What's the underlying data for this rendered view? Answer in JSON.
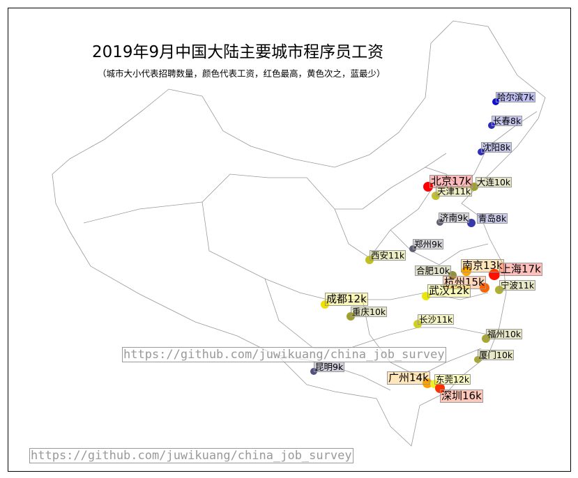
{
  "title": "2019年9月中国大陆主要城市程序员工资",
  "subtitle": "（城市大小代表招聘数量，颜色代表工资，红色最高，黄色次之，蓝最少）",
  "watermark": "https://github.com/juwikuang/china_job_survey",
  "chart_data": {
    "type": "scatter-map",
    "cities": [
      {
        "name": "哈尔滨",
        "salary_k": 7,
        "label": "哈尔滨7k",
        "color": "#1010d0"
      },
      {
        "name": "长春",
        "salary_k": 8,
        "label": "长春8k",
        "color": "#2a2ac0"
      },
      {
        "name": "沈阳",
        "salary_k": 8,
        "label": "沈阳8k",
        "color": "#3030b8"
      },
      {
        "name": "北京",
        "salary_k": 17,
        "label": "北京17k",
        "color": "#ff0000"
      },
      {
        "name": "大连",
        "salary_k": 10,
        "label": "大连10k",
        "color": "#a0a030"
      },
      {
        "name": "天津",
        "salary_k": 11,
        "label": "天津11k",
        "color": "#c0c030"
      },
      {
        "name": "济南",
        "salary_k": 9,
        "label": "济南9k",
        "color": "#606070"
      },
      {
        "name": "青岛",
        "salary_k": 8,
        "label": "青岛8k",
        "color": "#3838a8"
      },
      {
        "name": "郑州",
        "salary_k": 9,
        "label": "郑州9k",
        "color": "#606070"
      },
      {
        "name": "西安",
        "salary_k": 11,
        "label": "西安11k",
        "color": "#c0c020"
      },
      {
        "name": "南京",
        "salary_k": 13,
        "label": "南京13k",
        "color": "#ffa500"
      },
      {
        "name": "合肥",
        "salary_k": 10,
        "label": "合肥10k",
        "color": "#909040"
      },
      {
        "name": "上海",
        "salary_k": 17,
        "label": "上海17k",
        "color": "#ff1000"
      },
      {
        "name": "杭州",
        "salary_k": 15,
        "label": "杭州15k",
        "color": "#ff6000"
      },
      {
        "name": "宁波",
        "salary_k": 11,
        "label": "宁波11k",
        "color": "#b0b030"
      },
      {
        "name": "武汉",
        "salary_k": 12,
        "label": "武汉12k",
        "color": "#e8e800"
      },
      {
        "name": "成都",
        "salary_k": 12,
        "label": "成都12k",
        "color": "#f0e000"
      },
      {
        "name": "重庆",
        "salary_k": 10,
        "label": "重庆10k",
        "color": "#a0a030"
      },
      {
        "name": "长沙",
        "salary_k": 11,
        "label": "长沙11k",
        "color": "#d0d020"
      },
      {
        "name": "福州",
        "salary_k": 10,
        "label": "福州10k",
        "color": "#a8a830"
      },
      {
        "name": "厦门",
        "salary_k": 10,
        "label": "厦门10k",
        "color": "#a8a830"
      },
      {
        "name": "昆明",
        "salary_k": 9,
        "label": "昆明9k",
        "color": "#505080"
      },
      {
        "name": "广州",
        "salary_k": 14,
        "label": "广州14k",
        "color": "#ffa000"
      },
      {
        "name": "东莞",
        "salary_k": 12,
        "label": "东莞12k",
        "color": "#f0f020"
      },
      {
        "name": "深圳",
        "salary_k": 16,
        "label": "深圳16k",
        "color": "#ff3000"
      }
    ]
  }
}
